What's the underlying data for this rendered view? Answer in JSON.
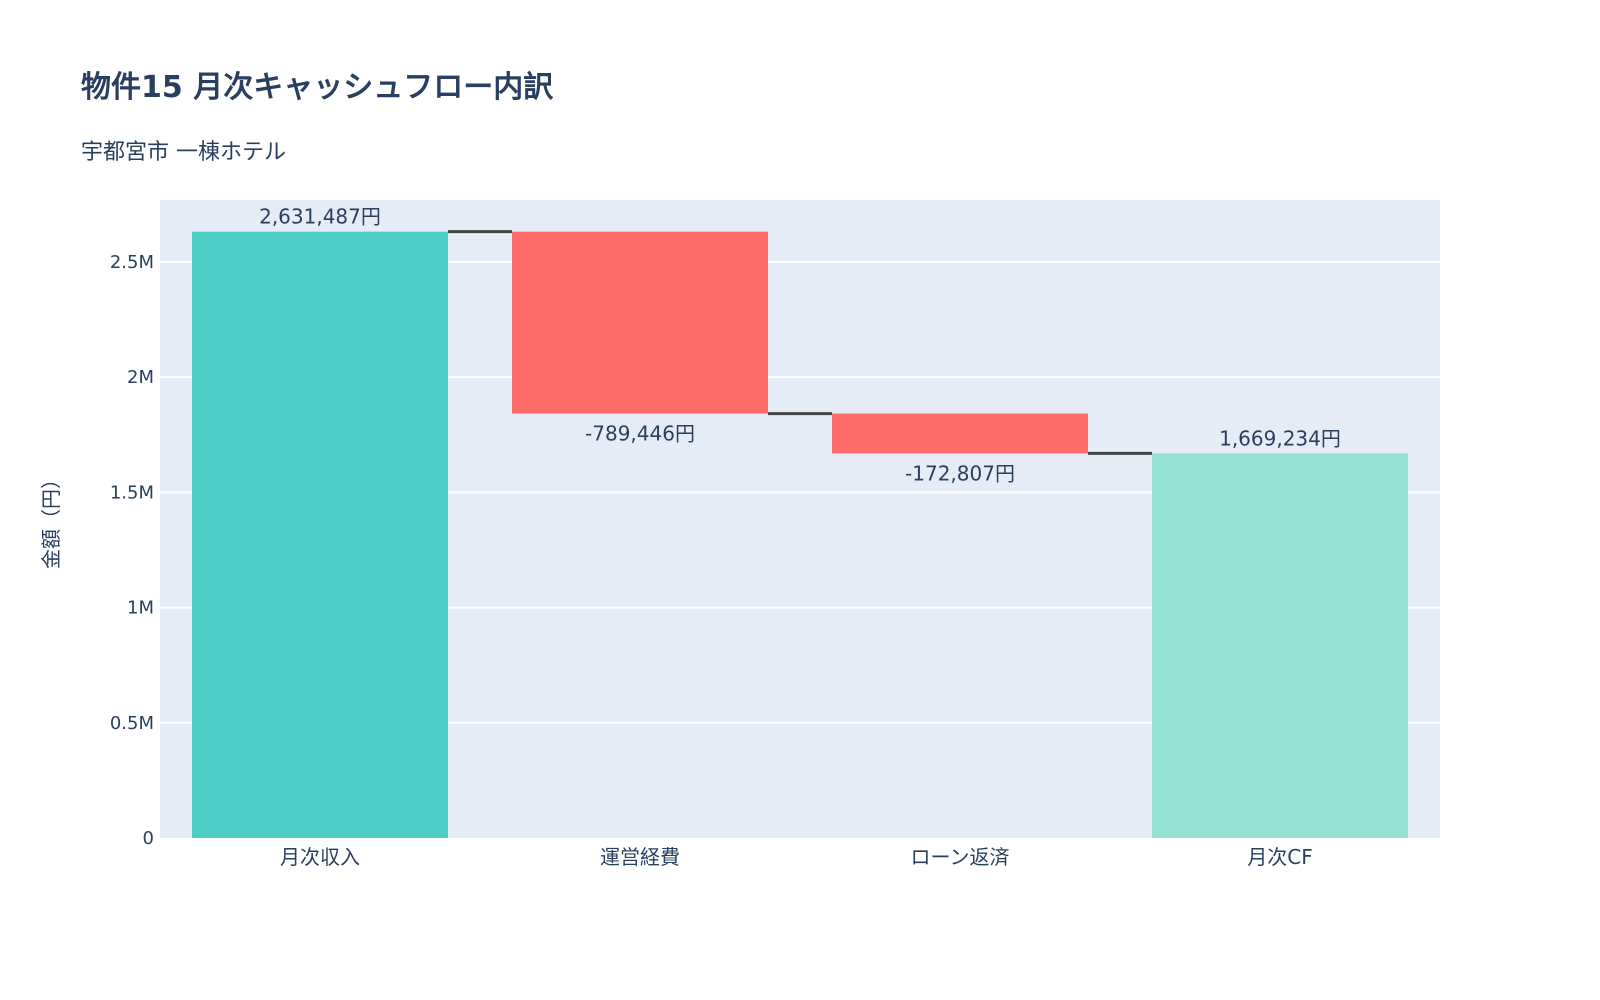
{
  "title": "物件15 月次キャッシュフロー内訳",
  "subtitle": "宇都宮市 一棟ホテル",
  "chart_data": {
    "type": "waterfall",
    "categories": [
      "月次収入",
      "運営経費",
      "ローン返済",
      "月次CF"
    ],
    "measures": [
      "relative",
      "relative",
      "relative",
      "total"
    ],
    "values": [
      2631487,
      -789446,
      -172807,
      1669234
    ],
    "data_labels": [
      "2,631,487円",
      "-789,446円",
      "-172,807円",
      "1,669,234円"
    ],
    "ylabel": "金額（円）",
    "xlabel": "",
    "ylim": [
      0,
      2769000
    ],
    "yticks": [
      0,
      500000,
      1000000,
      1500000,
      2000000,
      2500000
    ],
    "ytick_labels": [
      "0",
      "0.5M",
      "1M",
      "1.5M",
      "2M",
      "2.5M"
    ],
    "grid": true,
    "colors": {
      "increasing": "#4ECDC4",
      "decreasing": "#FF6B6B",
      "total": "#95E1D3",
      "connector": "#444444",
      "plot_bg": "#E5ECF6"
    }
  }
}
